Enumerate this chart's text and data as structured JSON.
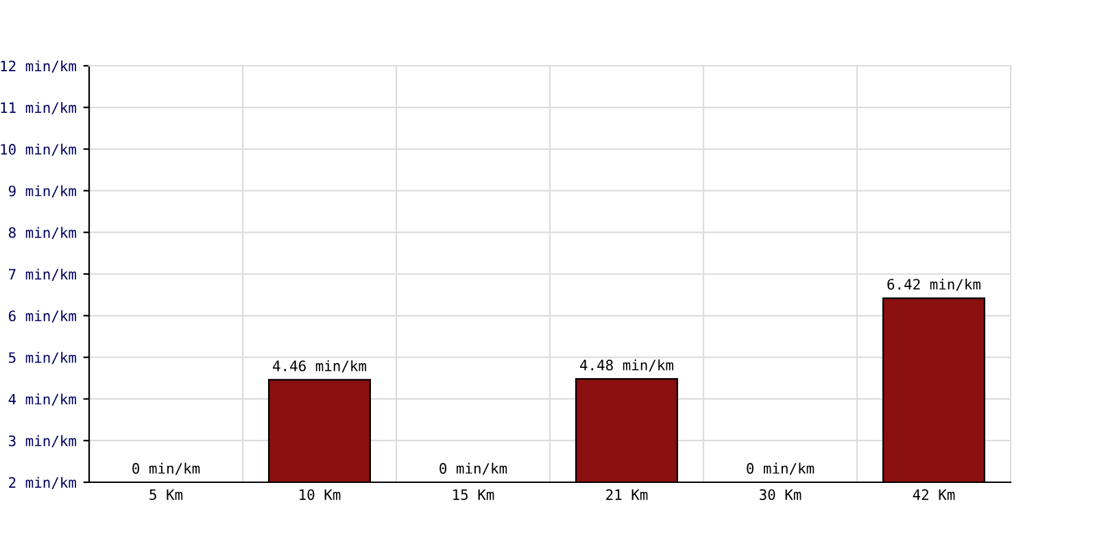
{
  "chart_data": {
    "type": "bar",
    "categories": [
      "5 Km",
      "10 Km",
      "15 Km",
      "21 Km",
      "30 Km",
      "42 Km"
    ],
    "values": [
      null,
      4.46,
      null,
      4.48,
      null,
      6.42
    ],
    "value_labels": [
      "0 min/km",
      "4.46 min/km",
      "0 min/km",
      "4.48 min/km",
      "0 min/km",
      "6.42 min/km"
    ],
    "color": "#8b1010",
    "ylim": [
      2,
      12
    ],
    "yticks": [
      {
        "value": 2,
        "label": "2 min/km"
      },
      {
        "value": 3,
        "label": "3 min/km"
      },
      {
        "value": 4,
        "label": "4 min/km"
      },
      {
        "value": 5,
        "label": "5 min/km"
      },
      {
        "value": 6,
        "label": "6 min/km"
      },
      {
        "value": 7,
        "label": "7 min/km"
      },
      {
        "value": 8,
        "label": "8 min/km"
      },
      {
        "value": 9,
        "label": "9 min/km"
      },
      {
        "value": 10,
        "label": "10 min/km"
      },
      {
        "value": 11,
        "label": "11 min/km"
      },
      {
        "value": 12,
        "label": "12 min/km"
      }
    ],
    "grid": true
  }
}
